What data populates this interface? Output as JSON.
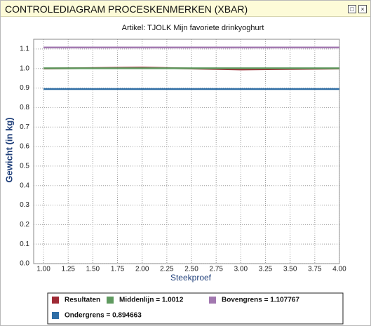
{
  "window_title": "CONTROLEDIAGRAM PROCESKENMERKEN (XBAR)",
  "chart_data": {
    "type": "line",
    "title": "Artikel: TJOLK Mijn favoriete drinkyoghurt",
    "x_label": "Steekproef",
    "y_label": "Gewicht (in kg)",
    "x": [
      1,
      2,
      3,
      4
    ],
    "series": [
      {
        "name": "Resultaten",
        "color": "#9e2a35",
        "values": [
          1.0,
          1.005,
          0.995,
          1.0
        ]
      },
      {
        "name": "Middenlijn = 1.0012",
        "color": "#5f9a5f",
        "values": [
          1.0012,
          1.0012,
          1.0012,
          1.0012
        ]
      },
      {
        "name": "Bovengrens = 1.107767",
        "color": "#a278b0",
        "values": [
          1.107767,
          1.107767,
          1.107767,
          1.107767
        ]
      },
      {
        "name": "Ondergrens = 0.894663",
        "color": "#2f6ea6",
        "values": [
          0.894663,
          0.894663,
          0.894663,
          0.894663
        ]
      }
    ],
    "xlim": [
      0.9,
      4.0
    ],
    "ylim": [
      0,
      1.15
    ],
    "xticks": [
      {
        "value": 1,
        "label": "1.00"
      },
      {
        "value": 1.25,
        "label": "1.25"
      },
      {
        "value": 1.5,
        "label": "1.50"
      },
      {
        "value": 1.75,
        "label": "1.75"
      },
      {
        "value": 2,
        "label": "2.00"
      },
      {
        "value": 2.25,
        "label": "2.25"
      },
      {
        "value": 2.5,
        "label": "2.50"
      },
      {
        "value": 2.75,
        "label": "2.75"
      },
      {
        "value": 3,
        "label": "3.00"
      },
      {
        "value": 3.25,
        "label": "3.25"
      },
      {
        "value": 3.5,
        "label": "3.50"
      },
      {
        "value": 3.75,
        "label": "3.75"
      },
      {
        "value": 4,
        "label": "4.00"
      }
    ],
    "yticks": [
      {
        "value": 0,
        "label": "0.0"
      },
      {
        "value": 0.1,
        "label": "0.1"
      },
      {
        "value": 0.2,
        "label": "0.2"
      },
      {
        "value": 0.3,
        "label": "0.3"
      },
      {
        "value": 0.4,
        "label": "0.4"
      },
      {
        "value": 0.5,
        "label": "0.5"
      },
      {
        "value": 0.6,
        "label": "0.6"
      },
      {
        "value": 0.7,
        "label": "0.7"
      },
      {
        "value": 0.8,
        "label": "0.8"
      },
      {
        "value": 0.9,
        "label": "0.9"
      },
      {
        "value": 1,
        "label": "1.0"
      },
      {
        "value": 1.1,
        "label": "1.1"
      }
    ],
    "grid": true
  }
}
